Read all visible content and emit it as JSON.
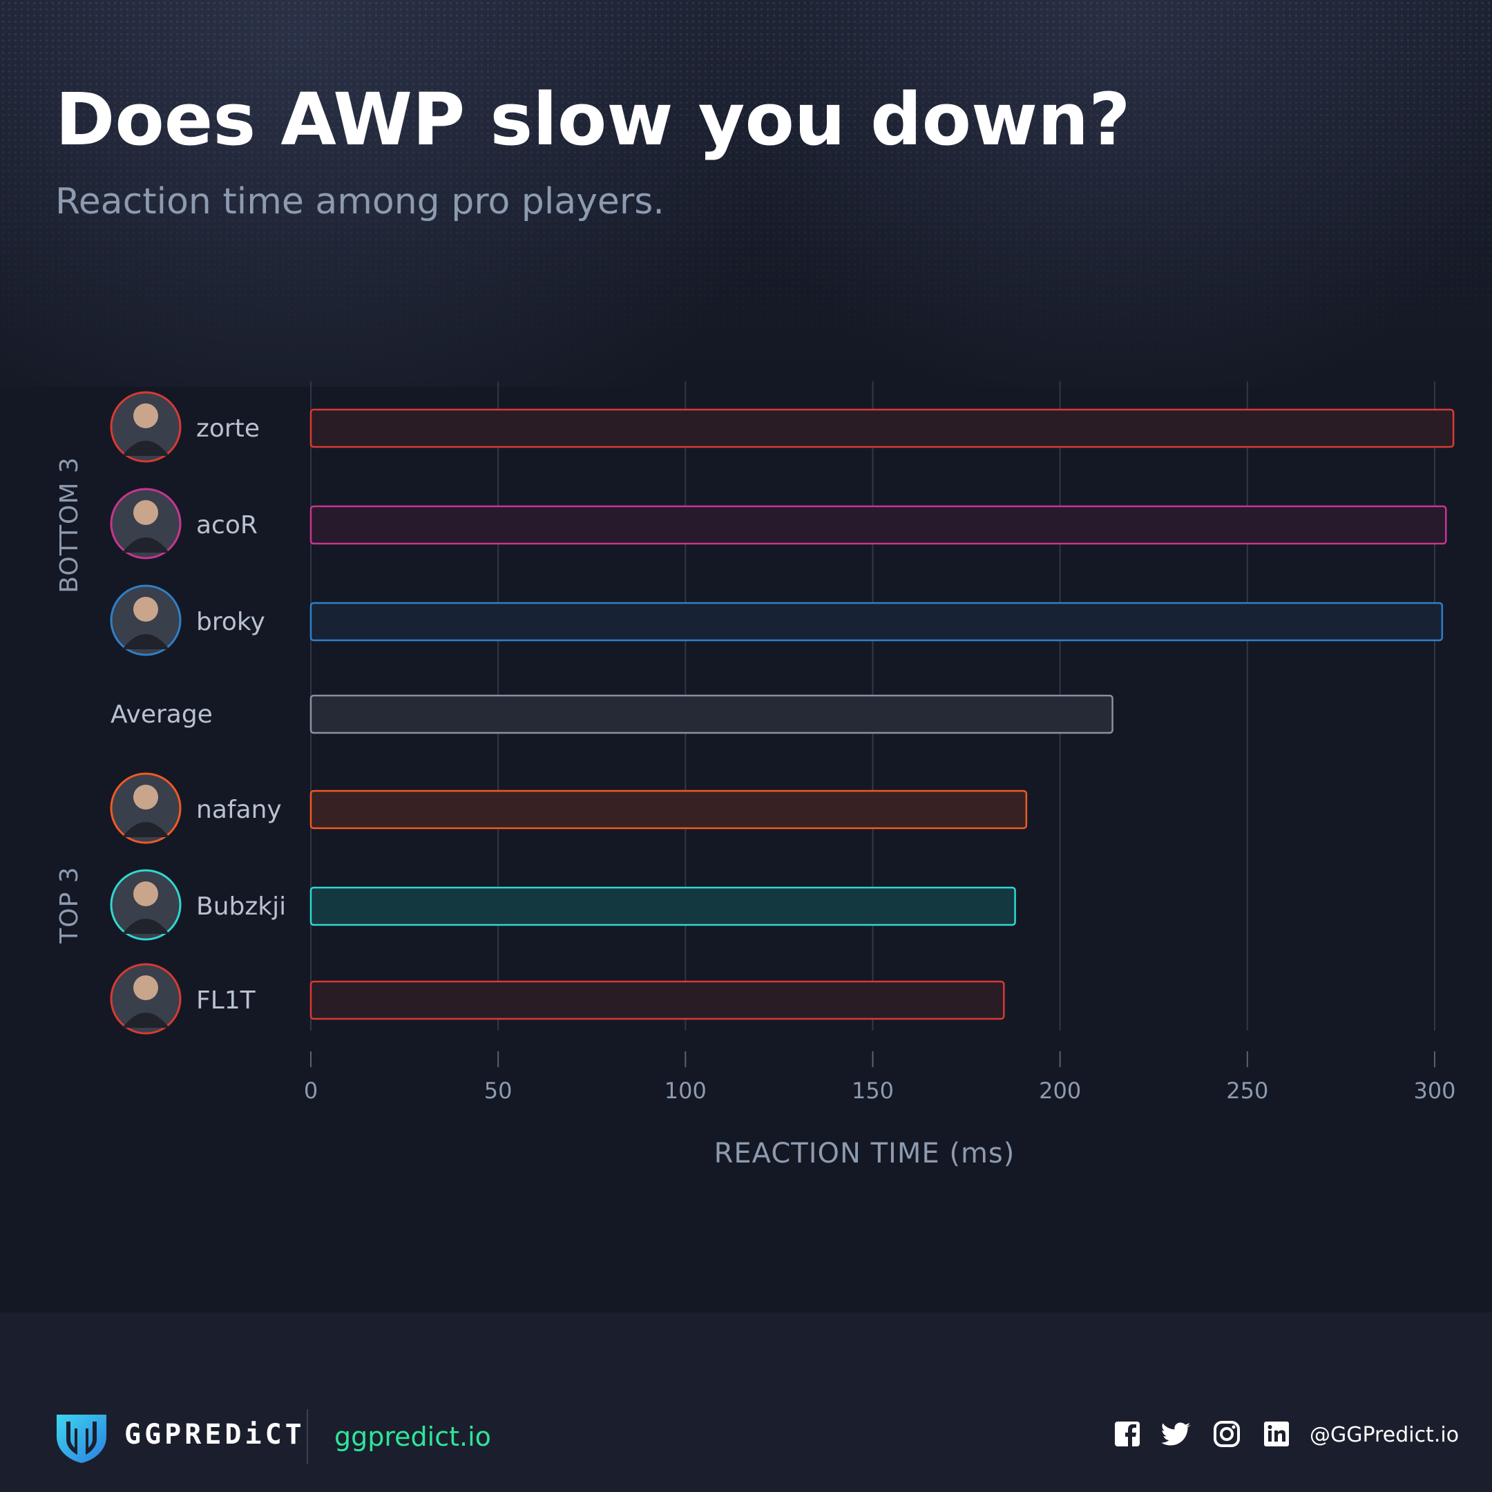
{
  "title": "Does AWP slow you down?",
  "subtitle": "Reaction time among pro players.",
  "chart_data": {
    "type": "bar",
    "orientation": "horizontal",
    "xlabel": "REACTION TIME (ms)",
    "xlim": [
      0,
      300
    ],
    "xticks": [
      "0",
      "50",
      "100",
      "150",
      "200",
      "250",
      "300"
    ],
    "grid": true,
    "groups": [
      {
        "label": "BOTTOM 3",
        "members": [
          "zorte",
          "acoR",
          "broky"
        ]
      },
      {
        "label": "TOP 3",
        "members": [
          "nafany",
          "Bubzkji",
          "FL1T"
        ]
      }
    ],
    "bars": [
      {
        "label": "zorte",
        "value": 305,
        "color": "#d93a33",
        "fill": "#2a1c24",
        "avatar": true
      },
      {
        "label": "acoR",
        "value": 303,
        "color": "#c9358f",
        "fill": "#271a2c",
        "avatar": true
      },
      {
        "label": "broky",
        "value": 302,
        "color": "#2f80c8",
        "fill": "#172235",
        "avatar": true
      },
      {
        "label": "Average",
        "value": 214,
        "color": "#8a91a0",
        "fill": "#262a37",
        "avatar": false
      },
      {
        "label": "nafany",
        "value": 191,
        "color": "#f05a24",
        "fill": "#382122",
        "avatar": true
      },
      {
        "label": "Bubzkji",
        "value": 188,
        "color": "#2fd9d1",
        "fill": "#143840",
        "avatar": true
      },
      {
        "label": "FL1T",
        "value": 185,
        "color": "#d93a33",
        "fill": "#2a1c24",
        "avatar": true
      }
    ]
  },
  "footer": {
    "brand": "GGPREDiCT",
    "site": "ggpredict.io",
    "handle": "@GGPredict.io",
    "social_icons": [
      "facebook-icon",
      "twitter-icon",
      "instagram-icon",
      "linkedin-icon"
    ]
  }
}
